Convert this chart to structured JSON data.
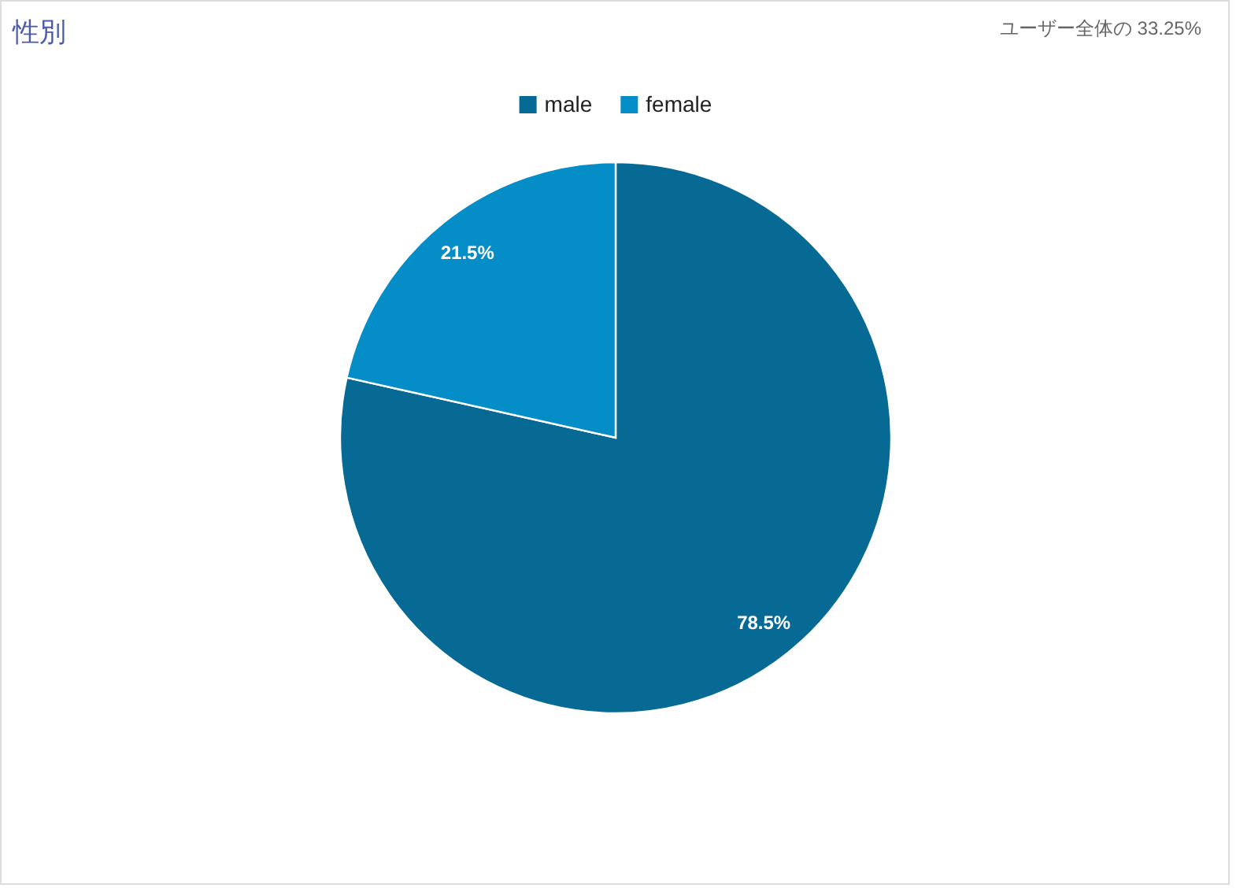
{
  "chart_data": {
    "type": "pie",
    "title": "性別",
    "annotations": [
      "ユーザー全体の 33.25%"
    ],
    "categories": [
      "male",
      "female"
    ],
    "values": [
      78.5,
      21.5
    ],
    "colors": [
      "#066a94",
      "#058dc7"
    ],
    "value_labels": [
      "78.5%",
      "21.5%"
    ],
    "legend": "top"
  }
}
